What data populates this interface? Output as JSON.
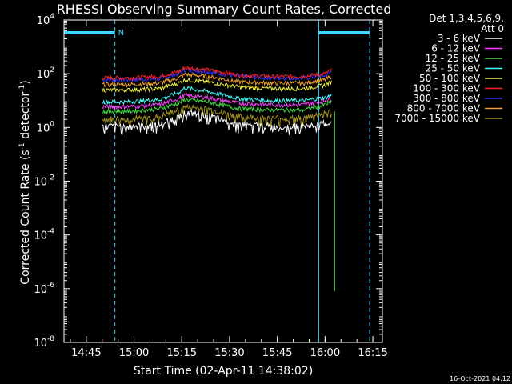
{
  "chart_data": {
    "type": "line",
    "title": "RHESSI Observing Summary Count Rates, Corrected",
    "xlabel": "Start Time (02-Apr-11 14:38:02)",
    "ylabel_main": "Corrected Count Rate (s",
    "ylabel_sup1": "-1",
    "ylabel_mid": " detector",
    "ylabel_sup2": "-1",
    "ylabel_end": ")",
    "x_unit": "minutes since 14:38:02",
    "xlim": [
      0,
      100
    ],
    "ylim_log10": [
      -8,
      4
    ],
    "y_log_scale": true,
    "x_ticks": [
      {
        "at": 7,
        "label": "14:45"
      },
      {
        "at": 22,
        "label": "15:00"
      },
      {
        "at": 37,
        "label": "15:15"
      },
      {
        "at": 52,
        "label": "15:30"
      },
      {
        "at": 67,
        "label": "15:45"
      },
      {
        "at": 82,
        "label": "16:00"
      },
      {
        "at": 97,
        "label": "16:15"
      }
    ],
    "y_ticks": [
      {
        "exp": 4,
        "base": "10",
        "sup": "4"
      },
      {
        "exp": 2,
        "base": "10",
        "sup": "2"
      },
      {
        "exp": 0,
        "base": "10",
        "sup": "0"
      },
      {
        "exp": -2,
        "base": "10",
        "sup": "-2"
      },
      {
        "exp": -4,
        "base": "10",
        "sup": "-4"
      },
      {
        "exp": -6,
        "base": "10",
        "sup": "-6"
      },
      {
        "exp": -8,
        "base": "10",
        "sup": "-8"
      }
    ],
    "legend": {
      "placement": "right",
      "header1": "Det 1,3,4,5,6,9,",
      "header2": "Att 0",
      "entries": [
        {
          "label": "3 - 6 keV",
          "color": "#ffffff"
        },
        {
          "label": "6 - 12 keV",
          "color": "#ff3fff"
        },
        {
          "label": "12 - 25 keV",
          "color": "#3fe03f"
        },
        {
          "label": "25 - 50 keV",
          "color": "#3fffff"
        },
        {
          "label": "50 - 100 keV",
          "color": "#f0f03f"
        },
        {
          "label": "100 - 300 keV",
          "color": "#ff2020"
        },
        {
          "label": "300 - 800 keV",
          "color": "#3030ff"
        },
        {
          "label": "800 - 7000 keV",
          "color": "#f0a030"
        },
        {
          "label": "7000 - 15000 keV",
          "color": "#a09020"
        }
      ]
    },
    "series": [
      {
        "color": "#3030ff",
        "x": [
          12,
          20,
          30,
          36,
          38,
          45,
          55,
          65,
          75,
          80,
          82,
          84
        ],
        "y": [
          60,
          60,
          65,
          100,
          140,
          120,
          80,
          70,
          70,
          80,
          85,
          120
        ]
      },
      {
        "color": "#ff2020",
        "x": [
          12,
          20,
          30,
          36,
          38,
          45,
          55,
          65,
          75,
          80,
          82,
          84
        ],
        "y": [
          70,
          70,
          80,
          120,
          170,
          140,
          90,
          80,
          80,
          95,
          100,
          140
        ]
      },
      {
        "color": "#f0a030",
        "x": [
          12,
          20,
          30,
          36,
          38,
          45,
          55,
          65,
          75,
          80,
          82,
          84
        ],
        "y": [
          40,
          40,
          45,
          70,
          95,
          80,
          50,
          45,
          45,
          55,
          60,
          80
        ]
      },
      {
        "color": "#f0f03f",
        "x": [
          12,
          20,
          30,
          36,
          38,
          45,
          55,
          65,
          75,
          80,
          82,
          84
        ],
        "y": [
          25,
          25,
          28,
          45,
          60,
          50,
          32,
          28,
          28,
          35,
          38,
          50
        ]
      },
      {
        "color": "#3fffff",
        "x": [
          12,
          20,
          30,
          36,
          38,
          45,
          55,
          65,
          75,
          80,
          82,
          84
        ],
        "y": [
          9,
          9,
          11,
          20,
          30,
          22,
          12,
          10,
          10,
          12,
          13,
          16
        ]
      },
      {
        "color": "#ff3fff",
        "x": [
          12,
          20,
          30,
          36,
          38,
          45,
          55,
          65,
          75,
          80,
          82,
          84
        ],
        "y": [
          6,
          6,
          7,
          12,
          16,
          13,
          8,
          7,
          7,
          9,
          10,
          12
        ]
      },
      {
        "color": "#3fe03f",
        "x": [
          12,
          20,
          30,
          36,
          38,
          45,
          55,
          65,
          75,
          80,
          82,
          84
        ],
        "y": [
          4,
          4,
          5,
          8,
          11,
          9,
          5,
          4.5,
          4.5,
          6,
          7,
          9
        ]
      },
      {
        "color": "#a09020",
        "x": [
          12,
          20,
          30,
          36,
          38,
          45,
          55,
          65,
          75,
          80,
          82,
          84
        ],
        "y": [
          2,
          2,
          2.5,
          4.5,
          6,
          5,
          2.5,
          2.2,
          2.2,
          3,
          3.5,
          4
        ]
      },
      {
        "color": "#ffffff",
        "x": [
          12,
          20,
          30,
          36,
          38,
          45,
          55,
          65,
          75,
          80,
          82,
          84
        ],
        "y": [
          1.1,
          1.1,
          1.3,
          2.5,
          3.5,
          2.8,
          1.3,
          1.1,
          1.1,
          1.3,
          1.4,
          1.5
        ]
      }
    ],
    "green_drop": {
      "x": 85,
      "y_from": 4,
      "y_to": 8e-07
    },
    "flags": {
      "label": "N",
      "bars": [
        {
          "x0": 0,
          "x1": 16
        },
        {
          "x0": 80,
          "x1": 96
        }
      ],
      "solid_lines": [
        0,
        80
      ],
      "dashed_lines": [
        16,
        96
      ]
    }
  },
  "footer_timestamp": "16-Oct-2021 04:12"
}
